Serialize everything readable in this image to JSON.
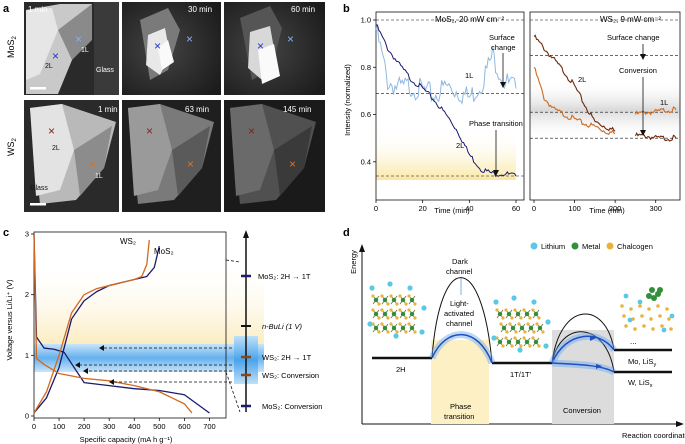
{
  "panel_a": {
    "letter": "a",
    "mos2_label": "MoS",
    "mos2_sub": "2",
    "ws2_label": "WS",
    "ws2_sub": "2",
    "mos2_times": [
      "1 min",
      "30 min",
      "60 min"
    ],
    "ws2_times": [
      "1 min",
      "63 min",
      "145 min"
    ],
    "label_1l": "1L",
    "label_2l": "2L",
    "glass": "Glass"
  },
  "panel_b": {
    "letter": "b",
    "ylabel": "Intensity (normalized)",
    "xlabel": "Time (min)",
    "left_title": "MoS₂, 20 mW cm⁻²",
    "right_title": "WS₂, 9 mW cm⁻²",
    "ann_surface_change_1": "Surface",
    "ann_surface_change_2": "change",
    "ann_phase_transition": "Phase transition",
    "ann_conversion": "Conversion",
    "label_1l": "1L",
    "label_2l": "2L"
  },
  "panel_c": {
    "letter": "c",
    "ylabel": "Voltage versus Li/Li⁺ (V)",
    "xlabel": "Specific capacity (mA h g⁻¹)",
    "legend_ws2": "WS₂",
    "legend_mos2": "MoS₂",
    "scale_labels": [
      "MoS₂: 2H → 1T",
      "n-BuLi (1 V)",
      "WS₂: 2H → 1T",
      "WS₂: Conversion",
      "MoS₂: Conversion"
    ]
  },
  "panel_d": {
    "letter": "d",
    "ylabel": "Energy",
    "xlabel": "Reaction coordinate",
    "legend": [
      "Lithium",
      "Metal",
      "Chalcogen"
    ],
    "dark_channel_1": "Dark",
    "dark_channel_2": "channel",
    "light_channel_1": "Light-",
    "light_channel_2": "activated",
    "light_channel_3": "channel",
    "state_2h": "2H",
    "state_1t": "1T/1T'",
    "phase_transition_1": "Phase",
    "phase_transition_2": "transition",
    "conversion": "Conversion",
    "prod_mo": "Mo, LiS",
    "prod_mo_sub": "y",
    "prod_w": "W, LiS",
    "prod_w_sub": "x",
    "ellipsis": "..."
  },
  "colors": {
    "mos2_dark": "#1a1a6e",
    "mos2_light": "#8fb8e0",
    "ws2_dark": "#6b2a0e",
    "ws2_light": "#d2691e",
    "accent_yellow": "#fdf3cf",
    "accent_blue": "#2b8fe0",
    "lithium": "#5bc8ea",
    "metal": "#2f8f3a",
    "chalcogen": "#e8b33a"
  },
  "chart_data": [
    {
      "type": "line",
      "title": "MoS₂, 20 mW cm⁻²",
      "xlabel": "Time (min)",
      "ylabel": "Intensity (normalized)",
      "xlim": [
        0,
        60
      ],
      "ylim": [
        0.3,
        1.0
      ],
      "series": [
        {
          "name": "1L",
          "x": [
            0,
            5,
            10,
            15,
            20,
            25,
            30,
            35,
            40,
            45,
            50,
            55,
            60
          ],
          "values": [
            0.96,
            0.74,
            0.71,
            0.72,
            0.7,
            0.68,
            0.72,
            0.7,
            0.67,
            0.73,
            0.85,
            0.74,
            0.71
          ]
        },
        {
          "name": "2L",
          "x": [
            0,
            5,
            10,
            15,
            20,
            25,
            30,
            35,
            40,
            45,
            50,
            55,
            60
          ],
          "values": [
            0.98,
            0.88,
            0.81,
            0.75,
            0.71,
            0.66,
            0.6,
            0.53,
            0.43,
            0.37,
            0.35,
            0.35,
            0.34
          ]
        }
      ],
      "reference_lines": [
        1.0,
        0.69,
        0.34
      ]
    },
    {
      "type": "line",
      "title": "WS₂, 9 mW cm⁻²",
      "xlabel": "Time (min)",
      "xlim": [
        0,
        350
      ],
      "ylim": [
        0.3,
        1.0
      ],
      "series": [
        {
          "name": "2L dark",
          "x": [
            0,
            25,
            50,
            75,
            100,
            125,
            150,
            175,
            200
          ],
          "values": [
            0.93,
            0.88,
            0.83,
            0.78,
            0.72,
            0.64,
            0.57,
            0.55,
            0.53
          ]
        },
        {
          "name": "2L light",
          "x": [
            0,
            25,
            50,
            75,
            100,
            125,
            150,
            175,
            200
          ],
          "values": [
            0.8,
            0.67,
            0.62,
            0.6,
            0.58,
            0.56,
            0.55,
            0.53,
            0.52
          ]
        },
        {
          "name": "1L",
          "x": [
            250,
            275,
            300,
            325,
            350
          ],
          "values": [
            0.6,
            0.61,
            0.61,
            0.62,
            0.62
          ]
        },
        {
          "name": "1L dark",
          "x": [
            250,
            275,
            300,
            325,
            350
          ],
          "values": [
            0.51,
            0.51,
            0.5,
            0.5,
            0.5
          ]
        }
      ],
      "reference_lines": [
        1.0,
        0.85,
        0.61,
        0.5
      ]
    },
    {
      "type": "line",
      "xlabel": "Specific capacity (mA h g⁻¹)",
      "ylabel": "Voltage versus Li/Li⁺ (V)",
      "xlim": [
        0,
        750
      ],
      "ylim": [
        0,
        3
      ],
      "series": [
        {
          "name": "MoS₂ discharge",
          "x": [
            0,
            10,
            40,
            80,
            120,
            200,
            300,
            400,
            500,
            600,
            650,
            700
          ],
          "values": [
            3.0,
            1.3,
            1.12,
            1.1,
            1.05,
            0.55,
            0.5,
            0.45,
            0.42,
            0.35,
            0.2,
            0.05
          ]
        },
        {
          "name": "MoS₂ charge",
          "x": [
            0,
            50,
            100,
            150,
            200,
            250,
            300,
            350,
            400,
            450,
            480,
            500
          ],
          "values": [
            0.05,
            0.3,
            0.8,
            1.6,
            1.9,
            2.05,
            2.15,
            2.2,
            2.25,
            2.3,
            2.45,
            2.8
          ]
        },
        {
          "name": "WS₂ discharge",
          "x": [
            0,
            10,
            40,
            60,
            100,
            200,
            300,
            400,
            500,
            550,
            600,
            630
          ],
          "values": [
            3.0,
            0.95,
            0.85,
            0.8,
            0.7,
            0.62,
            0.58,
            0.5,
            0.4,
            0.3,
            0.2,
            0.05
          ]
        },
        {
          "name": "WS₂ charge",
          "x": [
            0,
            50,
            100,
            150,
            200,
            250,
            300,
            350,
            400,
            430,
            450,
            460
          ],
          "values": [
            0.05,
            0.4,
            1.0,
            1.7,
            2.0,
            2.1,
            2.15,
            2.2,
            2.25,
            2.3,
            2.5,
            2.9
          ]
        }
      ]
    }
  ]
}
